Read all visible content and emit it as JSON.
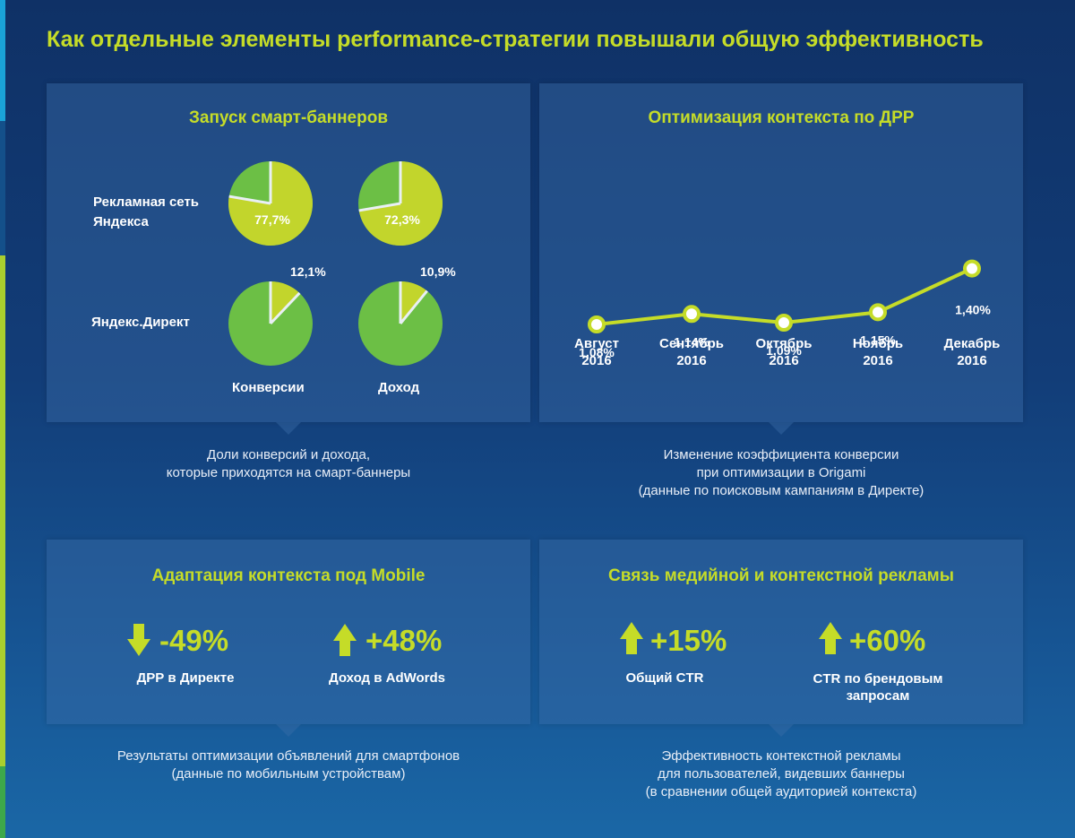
{
  "title": "Как отдельные элементы performance-стратегии повышали общую эффективность",
  "colors": {
    "accent": "#c5dc28",
    "green": "#6cbf45",
    "lime": "#c2d52c"
  },
  "panel_smart": {
    "title": "Запуск смарт-баннеров",
    "row1_label": "Рекламная сеть\nЯндекса",
    "row2_label": "Яндекс.Директ",
    "col1_label": "Конверсии",
    "col2_label": "Доход",
    "caption": "Доли конверсий и дохода,\nкоторые приходятся на смарт-баннеры"
  },
  "panel_drr": {
    "title": "Оптимизация контекста по ДРР",
    "caption": "Изменение коэффициента конверсии\nпри оптимизации в Origami\n(данные по поисковым кампаниям в Директе)"
  },
  "panel_mobile": {
    "title": "Адаптация контекста под Mobile",
    "metric1_value": "-49%",
    "metric1_label": "ДРР в Директе",
    "metric2_value": "+48%",
    "metric2_label": "Доход в AdWords",
    "caption": "Результаты оптимизации объявлений для смартфонов\n(данные по мобильным устройствам)"
  },
  "panel_media": {
    "title": "Связь медийной и контекстной рекламы",
    "metric1_value": "+15%",
    "metric1_label": "Общий CTR",
    "metric2_value": "+60%",
    "metric2_label": "CTR по брендовым\nзапросам",
    "caption": "Эффективность контекстной рекламы\nдля пользователей, видевших баннеры\n(в сравнении общей аудиторией контекста)"
  },
  "chart_data": [
    {
      "type": "pie",
      "title": "Запуск смарт-баннеров",
      "rows": [
        "Рекламная сеть Яндекса",
        "Яндекс.Директ"
      ],
      "columns": [
        "Конверсии",
        "Доход"
      ],
      "series": [
        {
          "name": "Рекламная сеть Яндекса",
          "values": [
            77.7,
            72.3
          ],
          "labels": [
            "77,7%",
            "72,3%"
          ]
        },
        {
          "name": "Яндекс.Директ",
          "values": [
            12.1,
            10.9
          ],
          "labels": [
            "12,1%",
            "10,9%"
          ]
        }
      ]
    },
    {
      "type": "line",
      "title": "Оптимизация контекста по ДРР",
      "categories": [
        "Август\n2016",
        "Сентябрь\n2016",
        "Октябрь\n2016",
        "Ноябрь\n2016",
        "Декабрь\n2016"
      ],
      "values": [
        1.08,
        1.14,
        1.09,
        1.15,
        1.4
      ],
      "labels": [
        "1,08%",
        "1,14%",
        "1,09%",
        "1,15%",
        "1,40%"
      ],
      "grid": false
    }
  ]
}
